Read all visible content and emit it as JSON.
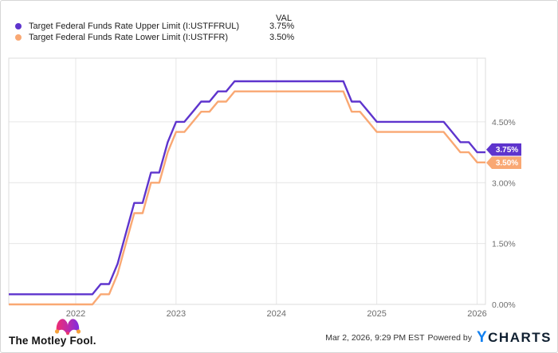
{
  "legend": {
    "val_header": "VAL",
    "series": [
      {
        "label": "Target Federal Funds Rate Upper Limit (I:USTFFRUL)",
        "value": "3.75%"
      },
      {
        "label": "Target Federal Funds Rate Lower Limit (I:USTFFR)",
        "value": "3.50%"
      }
    ]
  },
  "footer": {
    "brand": "The Motley Fool.",
    "timestamp": "Mar 2, 2026, 9:29 PM EST",
    "powered_by": "Powered by",
    "ycharts_y": "Y",
    "ycharts_rest": "CHARTS"
  },
  "colors": {
    "upper_line": "#5e34cd",
    "lower_line": "#f9a873",
    "grid": "#e6e6e6",
    "axis_text": "#6e6e6e"
  },
  "chart_data": {
    "type": "line",
    "title": "",
    "xlabel": "",
    "ylabel": "",
    "grid": true,
    "legend_position": "top-left",
    "x_axis": {
      "range": [
        2021.333,
        2026.083
      ],
      "ticks": [
        2022,
        2023,
        2024,
        2025,
        2026
      ],
      "tick_labels": [
        "2022",
        "2023",
        "2024",
        "2025",
        "2026"
      ]
    },
    "y_axis": {
      "side": "right",
      "range": [
        0,
        6.07
      ],
      "ticks": [
        0,
        1.5,
        3,
        4.5
      ],
      "tick_labels": [
        "0.00%",
        "1.50%",
        "3.00%",
        "4.50%"
      ]
    },
    "x": [
      2021.333,
      2021.417,
      2021.5,
      2021.583,
      2021.667,
      2021.75,
      2021.833,
      2021.917,
      2022,
      2022.083,
      2022.167,
      2022.25,
      2022.333,
      2022.417,
      2022.5,
      2022.583,
      2022.667,
      2022.75,
      2022.833,
      2022.917,
      2023,
      2023.083,
      2023.167,
      2023.25,
      2023.333,
      2023.417,
      2023.5,
      2023.583,
      2023.667,
      2023.75,
      2023.833,
      2023.917,
      2024,
      2024.083,
      2024.167,
      2024.25,
      2024.333,
      2024.417,
      2024.5,
      2024.583,
      2024.667,
      2024.75,
      2024.833,
      2024.917,
      2025,
      2025.083,
      2025.167,
      2025.25,
      2025.333,
      2025.417,
      2025.5,
      2025.583,
      2025.667,
      2025.75,
      2025.833,
      2025.917,
      2026,
      2026.083
    ],
    "series": [
      {
        "name": "Target Federal Funds Rate Upper Limit (I:USTFFRUL)",
        "color": "#5e34cd",
        "end_label": "3.75%",
        "current_value": 3.75,
        "values": [
          0.25,
          0.25,
          0.25,
          0.25,
          0.25,
          0.25,
          0.25,
          0.25,
          0.25,
          0.25,
          0.25,
          0.5,
          0.5,
          1,
          1.75,
          2.5,
          2.5,
          3.25,
          3.25,
          4,
          4.5,
          4.5,
          4.75,
          5,
          5,
          5.25,
          5.25,
          5.5,
          5.5,
          5.5,
          5.5,
          5.5,
          5.5,
          5.5,
          5.5,
          5.5,
          5.5,
          5.5,
          5.5,
          5.5,
          5.5,
          5,
          5,
          4.75,
          4.5,
          4.5,
          4.5,
          4.5,
          4.5,
          4.5,
          4.5,
          4.5,
          4.5,
          4.25,
          4,
          4,
          3.75,
          3.75
        ]
      },
      {
        "name": "Target Federal Funds Rate Lower Limit (I:USTFFR)",
        "color": "#f9a873",
        "end_label": "3.50%",
        "current_value": 3.5,
        "values": [
          0,
          0,
          0,
          0,
          0,
          0,
          0,
          0,
          0,
          0,
          0,
          0.25,
          0.25,
          0.75,
          1.5,
          2.25,
          2.25,
          3,
          3,
          3.75,
          4.25,
          4.25,
          4.5,
          4.75,
          4.75,
          5,
          5,
          5.25,
          5.25,
          5.25,
          5.25,
          5.25,
          5.25,
          5.25,
          5.25,
          5.25,
          5.25,
          5.25,
          5.25,
          5.25,
          5.25,
          4.75,
          4.75,
          4.5,
          4.25,
          4.25,
          4.25,
          4.25,
          4.25,
          4.25,
          4.25,
          4.25,
          4.25,
          4,
          3.75,
          3.75,
          3.5,
          3.5
        ]
      }
    ]
  }
}
